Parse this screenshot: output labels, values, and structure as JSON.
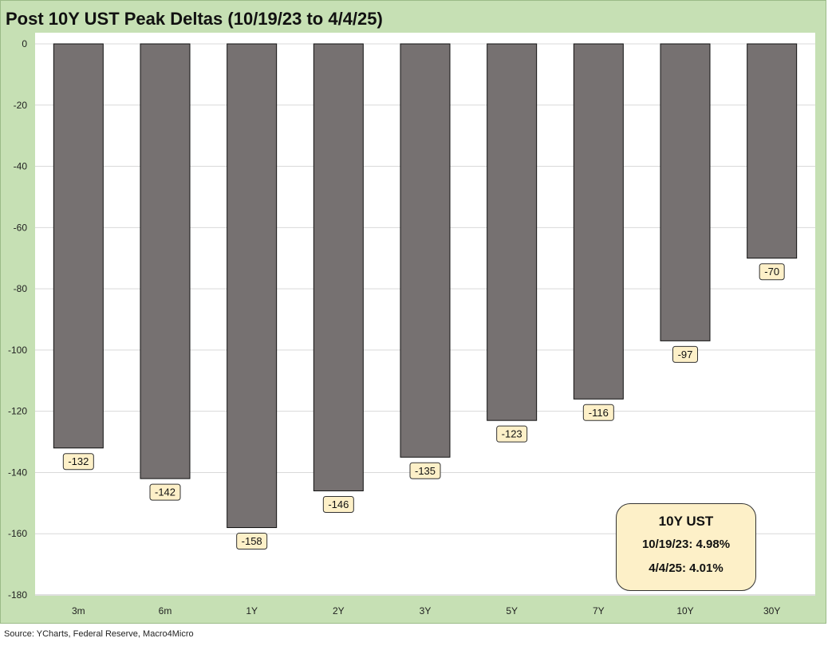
{
  "chart_data": {
    "type": "bar",
    "title": "Post 10Y UST Peak Deltas (10/19/23 to 4/4/25)",
    "categories": [
      "3m",
      "6m",
      "1Y",
      "2Y",
      "3Y",
      "5Y",
      "7Y",
      "10Y",
      "30Y"
    ],
    "values": [
      -132,
      -142,
      -158,
      -146,
      -135,
      -123,
      -116,
      -97,
      -70
    ],
    "data_labels": [
      "-132",
      "-142",
      "-158",
      "-146",
      "-135",
      "-123",
      "-116",
      "-97",
      "-70"
    ],
    "ylim": [
      -180,
      0
    ],
    "yticks": [
      0,
      -20,
      -40,
      -60,
      -80,
      -100,
      -120,
      -140,
      -160,
      -180
    ],
    "grid": true,
    "bar_color": "#767171",
    "label_box_color": "#fdf0c8",
    "background_color": "#c6e0b4",
    "annotation": {
      "title": "10Y UST",
      "line1": "10/19/23: 4.98%",
      "line2": "4/4/25: 4.01%"
    }
  },
  "source": "Source: YCharts, Federal Reserve, Macro4Micro"
}
